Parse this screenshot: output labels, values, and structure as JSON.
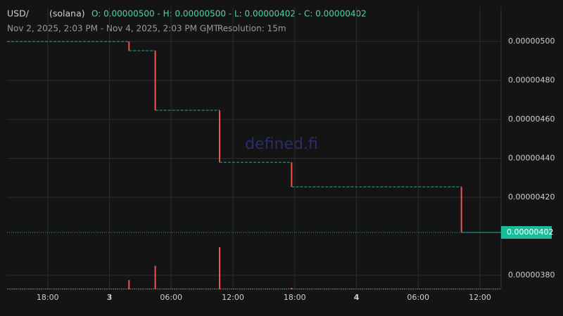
{
  "chart_data": {
    "type": "candlestick",
    "symbol": "USD/",
    "chain": "(solana)",
    "ohlc_text": "O: 0.00000500 - H: 0.00000500 - L: 0.00000402 - C: 0.00000402",
    "range_text": "Nov 2, 2025, 2:03 PM - Nov 4, 2025, 2:03 PM GMT",
    "separator": "|",
    "resolution": "Resolution: 15m",
    "watermark": "defined.fi",
    "x": [
      25.9,
      28.45,
      34.7,
      41.7,
      58.2
    ],
    "open": [
      5e-06,
      4.953e-06,
      4.647e-06,
      4.38e-06,
      4.254e-06
    ],
    "close": [
      4.953e-06,
      4.647e-06,
      4.38e-06,
      4.254e-06,
      4.02e-06
    ],
    "volume": [
      13,
      33,
      59,
      2,
      0
    ],
    "first_value": 5e-06,
    "last_price": {
      "value": 4.02e-06,
      "label": "0.00000402"
    },
    "up_color": "#26a69a",
    "down_color": "#ef5350",
    "line_color": "#26a69a",
    "xlim": [
      14.05,
      62.05
    ],
    "xticks": [
      {
        "value": 18,
        "label": "18:00"
      },
      {
        "value": 24,
        "label": "3"
      },
      {
        "value": 30,
        "label": "06:00"
      },
      {
        "value": 36,
        "label": "12:00"
      },
      {
        "value": 42,
        "label": "18:00"
      },
      {
        "value": 48,
        "label": "4"
      },
      {
        "value": 54,
        "label": "06:00"
      },
      {
        "value": 60,
        "label": "12:00"
      }
    ],
    "ylim": [
      3.728e-06,
      5.177e-06
    ],
    "yticks": [
      {
        "value": 3.8e-06,
        "label": "0.00000380"
      },
      {
        "value": 4.2e-06,
        "label": "0.00000420"
      },
      {
        "value": 4.4e-06,
        "label": "0.00000440"
      },
      {
        "value": 4.6e-06,
        "label": "0.00000460"
      },
      {
        "value": 4.8e-06,
        "label": "0.00000480"
      },
      {
        "value": 5e-06,
        "label": "0.00000500"
      }
    ],
    "grid": true
  }
}
